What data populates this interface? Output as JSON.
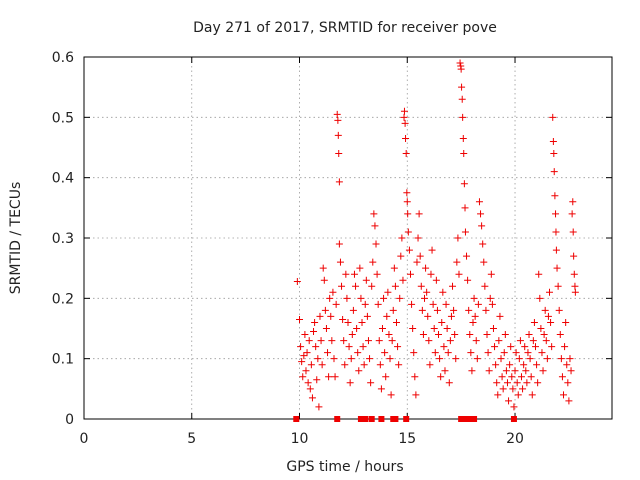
{
  "chart_data": {
    "type": "scatter",
    "title": "Day 271 of 2017, SRMTID for receiver pove",
    "xlabel": "GPS time / hours",
    "ylabel": "SRMTID / TECUs",
    "xlim": [
      0,
      24.5
    ],
    "ylim": [
      0,
      0.6
    ],
    "xticks": [
      0,
      5,
      10,
      15,
      20
    ],
    "yticks": [
      0,
      0.1,
      0.2,
      0.3,
      0.4,
      0.5,
      0.6
    ],
    "grid": true,
    "marker": "+",
    "color": "#ee0000",
    "series": [
      {
        "name": "SRMTID",
        "points": [
          [
            9.9,
            0.228
          ],
          [
            10.0,
            0.165
          ],
          [
            10.05,
            0.12
          ],
          [
            10.1,
            0.095
          ],
          [
            10.15,
            0.07
          ],
          [
            10.2,
            0.105
          ],
          [
            10.25,
            0.14
          ],
          [
            10.3,
            0.08
          ],
          [
            10.35,
            0.11
          ],
          [
            10.4,
            0.06
          ],
          [
            10.45,
            0.13
          ],
          [
            10.5,
            0.05
          ],
          [
            10.55,
            0.09
          ],
          [
            10.6,
            0.035
          ],
          [
            10.65,
            0.145
          ],
          [
            10.7,
            0.16
          ],
          [
            10.75,
            0.12
          ],
          [
            10.8,
            0.065
          ],
          [
            10.85,
            0.1
          ],
          [
            10.9,
            0.02
          ],
          [
            10.95,
            0.17
          ],
          [
            11.0,
            0.13
          ],
          [
            11.05,
            0.09
          ],
          [
            11.1,
            0.25
          ],
          [
            11.15,
            0.23
          ],
          [
            11.2,
            0.18
          ],
          [
            11.25,
            0.15
          ],
          [
            11.3,
            0.11
          ],
          [
            11.35,
            0.07
          ],
          [
            11.4,
            0.2
          ],
          [
            11.45,
            0.17
          ],
          [
            11.5,
            0.13
          ],
          [
            11.55,
            0.21
          ],
          [
            11.6,
            0.1
          ],
          [
            11.65,
            0.07
          ],
          [
            11.7,
            0.19
          ],
          [
            11.75,
            0.505
          ],
          [
            11.78,
            0.495
          ],
          [
            11.8,
            0.47
          ],
          [
            11.82,
            0.44
          ],
          [
            11.85,
            0.393
          ],
          [
            11.85,
            0.29
          ],
          [
            11.9,
            0.26
          ],
          [
            11.95,
            0.22
          ],
          [
            12.0,
            0.165
          ],
          [
            12.05,
            0.13
          ],
          [
            12.1,
            0.09
          ],
          [
            12.15,
            0.24
          ],
          [
            12.2,
            0.2
          ],
          [
            12.25,
            0.16
          ],
          [
            12.3,
            0.12
          ],
          [
            12.35,
            0.06
          ],
          [
            12.4,
            0.1
          ],
          [
            12.45,
            0.14
          ],
          [
            12.5,
            0.18
          ],
          [
            12.55,
            0.24
          ],
          [
            12.6,
            0.22
          ],
          [
            12.65,
            0.15
          ],
          [
            12.7,
            0.11
          ],
          [
            12.75,
            0.08
          ],
          [
            12.8,
            0.25
          ],
          [
            12.85,
            0.2
          ],
          [
            12.9,
            0.16
          ],
          [
            12.95,
            0.12
          ],
          [
            13.0,
            0.09
          ],
          [
            13.05,
            0.19
          ],
          [
            13.1,
            0.23
          ],
          [
            13.15,
            0.17
          ],
          [
            13.2,
            0.13
          ],
          [
            13.25,
            0.1
          ],
          [
            13.3,
            0.06
          ],
          [
            13.35,
            0.22
          ],
          [
            13.4,
            0.26
          ],
          [
            13.45,
            0.34
          ],
          [
            13.5,
            0.32
          ],
          [
            13.55,
            0.29
          ],
          [
            13.6,
            0.24
          ],
          [
            13.65,
            0.19
          ],
          [
            13.7,
            0.13
          ],
          [
            13.75,
            0.09
          ],
          [
            13.8,
            0.05
          ],
          [
            13.85,
            0.15
          ],
          [
            13.9,
            0.2
          ],
          [
            13.95,
            0.11
          ],
          [
            14.0,
            0.07
          ],
          [
            14.05,
            0.17
          ],
          [
            14.1,
            0.21
          ],
          [
            14.15,
            0.14
          ],
          [
            14.2,
            0.1
          ],
          [
            14.25,
            0.04
          ],
          [
            14.3,
            0.13
          ],
          [
            14.35,
            0.18
          ],
          [
            14.4,
            0.25
          ],
          [
            14.45,
            0.22
          ],
          [
            14.5,
            0.16
          ],
          [
            14.55,
            0.12
          ],
          [
            14.6,
            0.09
          ],
          [
            14.65,
            0.2
          ],
          [
            14.7,
            0.27
          ],
          [
            14.75,
            0.3
          ],
          [
            14.8,
            0.23
          ],
          [
            14.85,
            0.5
          ],
          [
            14.87,
            0.51
          ],
          [
            14.9,
            0.49
          ],
          [
            14.92,
            0.465
          ],
          [
            14.95,
            0.44
          ],
          [
            14.98,
            0.375
          ],
          [
            15.0,
            0.36
          ],
          [
            15.02,
            0.34
          ],
          [
            15.05,
            0.31
          ],
          [
            15.1,
            0.28
          ],
          [
            15.15,
            0.24
          ],
          [
            15.2,
            0.19
          ],
          [
            15.25,
            0.15
          ],
          [
            15.3,
            0.11
          ],
          [
            15.35,
            0.07
          ],
          [
            15.4,
            0.04
          ],
          [
            15.45,
            0.26
          ],
          [
            15.5,
            0.3
          ],
          [
            15.55,
            0.34
          ],
          [
            15.6,
            0.27
          ],
          [
            15.65,
            0.22
          ],
          [
            15.7,
            0.18
          ],
          [
            15.75,
            0.14
          ],
          [
            15.8,
            0.2
          ],
          [
            15.85,
            0.25
          ],
          [
            15.9,
            0.21
          ],
          [
            15.95,
            0.17
          ],
          [
            16.0,
            0.13
          ],
          [
            16.05,
            0.09
          ],
          [
            16.1,
            0.24
          ],
          [
            16.15,
            0.28
          ],
          [
            16.2,
            0.19
          ],
          [
            16.25,
            0.15
          ],
          [
            16.3,
            0.11
          ],
          [
            16.35,
            0.23
          ],
          [
            16.4,
            0.18
          ],
          [
            16.45,
            0.14
          ],
          [
            16.5,
            0.1
          ],
          [
            16.55,
            0.07
          ],
          [
            16.6,
            0.16
          ],
          [
            16.65,
            0.21
          ],
          [
            16.7,
            0.12
          ],
          [
            16.75,
            0.08
          ],
          [
            16.8,
            0.19
          ],
          [
            16.85,
            0.15
          ],
          [
            16.9,
            0.11
          ],
          [
            16.95,
            0.06
          ],
          [
            17.0,
            0.13
          ],
          [
            17.05,
            0.17
          ],
          [
            17.1,
            0.22
          ],
          [
            17.15,
            0.18
          ],
          [
            17.2,
            0.14
          ],
          [
            17.25,
            0.1
          ],
          [
            17.3,
            0.26
          ],
          [
            17.35,
            0.3
          ],
          [
            17.4,
            0.24
          ],
          [
            17.45,
            0.59
          ],
          [
            17.48,
            0.585
          ],
          [
            17.5,
            0.58
          ],
          [
            17.52,
            0.55
          ],
          [
            17.55,
            0.53
          ],
          [
            17.57,
            0.5
          ],
          [
            17.6,
            0.465
          ],
          [
            17.62,
            0.44
          ],
          [
            17.65,
            0.39
          ],
          [
            17.68,
            0.35
          ],
          [
            17.7,
            0.31
          ],
          [
            17.75,
            0.27
          ],
          [
            17.8,
            0.23
          ],
          [
            17.85,
            0.18
          ],
          [
            17.9,
            0.14
          ],
          [
            17.95,
            0.11
          ],
          [
            18.0,
            0.08
          ],
          [
            18.05,
            0.16
          ],
          [
            18.1,
            0.2
          ],
          [
            18.15,
            0.17
          ],
          [
            18.2,
            0.13
          ],
          [
            18.25,
            0.1
          ],
          [
            18.3,
            0.19
          ],
          [
            18.35,
            0.36
          ],
          [
            18.4,
            0.34
          ],
          [
            18.45,
            0.32
          ],
          [
            18.5,
            0.29
          ],
          [
            18.55,
            0.26
          ],
          [
            18.6,
            0.22
          ],
          [
            18.65,
            0.18
          ],
          [
            18.7,
            0.14
          ],
          [
            18.75,
            0.11
          ],
          [
            18.8,
            0.08
          ],
          [
            18.85,
            0.2
          ],
          [
            18.9,
            0.24
          ],
          [
            18.95,
            0.19
          ],
          [
            19.0,
            0.15
          ],
          [
            19.05,
            0.12
          ],
          [
            19.1,
            0.09
          ],
          [
            19.15,
            0.06
          ],
          [
            19.2,
            0.04
          ],
          [
            19.25,
            0.13
          ],
          [
            19.3,
            0.17
          ],
          [
            19.35,
            0.1
          ],
          [
            19.4,
            0.07
          ],
          [
            19.45,
            0.05
          ],
          [
            19.5,
            0.11
          ],
          [
            19.55,
            0.14
          ],
          [
            19.6,
            0.08
          ],
          [
            19.65,
            0.06
          ],
          [
            19.7,
            0.03
          ],
          [
            19.75,
            0.09
          ],
          [
            19.8,
            0.12
          ],
          [
            19.85,
            0.07
          ],
          [
            19.9,
            0.05
          ],
          [
            19.95,
            0.02
          ],
          [
            20.0,
            0.08
          ],
          [
            20.05,
            0.11
          ],
          [
            20.1,
            0.06
          ],
          [
            20.15,
            0.04
          ],
          [
            20.2,
            0.1
          ],
          [
            20.25,
            0.13
          ],
          [
            20.3,
            0.07
          ],
          [
            20.35,
            0.05
          ],
          [
            20.4,
            0.09
          ],
          [
            20.45,
            0.12
          ],
          [
            20.5,
            0.08
          ],
          [
            20.55,
            0.06
          ],
          [
            20.6,
            0.11
          ],
          [
            20.65,
            0.14
          ],
          [
            20.7,
            0.1
          ],
          [
            20.75,
            0.07
          ],
          [
            20.8,
            0.04
          ],
          [
            20.85,
            0.13
          ],
          [
            20.9,
            0.16
          ],
          [
            20.95,
            0.12
          ],
          [
            21.0,
            0.09
          ],
          [
            21.05,
            0.06
          ],
          [
            21.1,
            0.24
          ],
          [
            21.15,
            0.2
          ],
          [
            21.2,
            0.15
          ],
          [
            21.25,
            0.11
          ],
          [
            21.3,
            0.08
          ],
          [
            21.35,
            0.14
          ],
          [
            21.4,
            0.18
          ],
          [
            21.45,
            0.13
          ],
          [
            21.5,
            0.1
          ],
          [
            21.55,
            0.17
          ],
          [
            21.6,
            0.21
          ],
          [
            21.65,
            0.16
          ],
          [
            21.7,
            0.12
          ],
          [
            21.75,
            0.5
          ],
          [
            21.78,
            0.46
          ],
          [
            21.8,
            0.44
          ],
          [
            21.82,
            0.41
          ],
          [
            21.85,
            0.37
          ],
          [
            21.88,
            0.34
          ],
          [
            21.9,
            0.31
          ],
          [
            21.92,
            0.28
          ],
          [
            21.95,
            0.25
          ],
          [
            22.0,
            0.22
          ],
          [
            22.05,
            0.18
          ],
          [
            22.1,
            0.14
          ],
          [
            22.15,
            0.1
          ],
          [
            22.2,
            0.07
          ],
          [
            22.25,
            0.04
          ],
          [
            22.3,
            0.12
          ],
          [
            22.35,
            0.16
          ],
          [
            22.4,
            0.09
          ],
          [
            22.45,
            0.06
          ],
          [
            22.5,
            0.03
          ],
          [
            22.55,
            0.1
          ],
          [
            22.6,
            0.08
          ],
          [
            22.65,
            0.34
          ],
          [
            22.68,
            0.36
          ],
          [
            22.7,
            0.31
          ],
          [
            22.72,
            0.27
          ],
          [
            22.75,
            0.24
          ],
          [
            22.78,
            0.22
          ],
          [
            22.8,
            0.21
          ]
        ]
      },
      {
        "name": "zero-markers",
        "marker": "square",
        "x": [
          9.85,
          11.75,
          12.85,
          13.05,
          13.35,
          13.8,
          14.35,
          14.45,
          14.95,
          17.5,
          17.7,
          17.9,
          18.1,
          19.95
        ]
      }
    ]
  }
}
